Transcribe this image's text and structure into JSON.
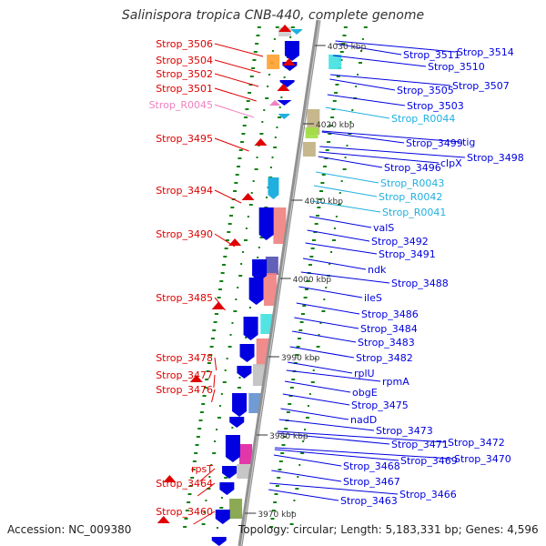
{
  "title": "Salinispora tropica CNB-440, complete genome",
  "footer": {
    "accession": "Accession: NC_009380",
    "topology": "Topology: circular; Length: 5,183,331 bp; Genes: 4,596"
  },
  "colors": {
    "left_gene": "#e00000",
    "left_rna": "#f080c0",
    "right_gene": "#0000e0",
    "right_rna": "#20b0e0",
    "backbone": "#909090",
    "tick_label": "#333333"
  },
  "kbp_ticks": [
    "3970 kbp",
    "3980 kbp",
    "3990 kbp",
    "4000 kbp",
    "4010 kbp",
    "4020 kbp",
    "4030 kbp"
  ],
  "left_labels": [
    {
      "text": "Strop_3506",
      "kind": "gene"
    },
    {
      "text": "Strop_3504",
      "kind": "gene"
    },
    {
      "text": "Strop_3502",
      "kind": "gene"
    },
    {
      "text": "Strop_3501",
      "kind": "gene"
    },
    {
      "text": "Strop_R0045",
      "kind": "rna"
    },
    {
      "text": "Strop_3495",
      "kind": "gene"
    },
    {
      "text": "Strop_3494",
      "kind": "gene"
    },
    {
      "text": "Strop_3490",
      "kind": "gene"
    },
    {
      "text": "Strop_3485",
      "kind": "gene"
    },
    {
      "text": "Strop_3478",
      "kind": "gene"
    },
    {
      "text": "Strop_3477",
      "kind": "gene"
    },
    {
      "text": "Strop_3476",
      "kind": "gene"
    },
    {
      "text": "rpsT",
      "kind": "gene"
    },
    {
      "text": "Strop_3464",
      "kind": "gene"
    },
    {
      "text": "Strop_3460",
      "kind": "gene"
    }
  ],
  "right_labels": [
    {
      "text": "Strop_3514",
      "kind": "gene"
    },
    {
      "text": "Strop_3511",
      "kind": "gene"
    },
    {
      "text": "Strop_3510",
      "kind": "gene"
    },
    {
      "text": "Strop_3507",
      "kind": "gene"
    },
    {
      "text": "Strop_3505",
      "kind": "gene"
    },
    {
      "text": "Strop_3503",
      "kind": "gene"
    },
    {
      "text": "Strop_R0044",
      "kind": "rna"
    },
    {
      "text": "tig",
      "kind": "gene"
    },
    {
      "text": "Strop_3499",
      "kind": "gene"
    },
    {
      "text": "Strop_3498",
      "kind": "gene"
    },
    {
      "text": "clpX",
      "kind": "gene"
    },
    {
      "text": "Strop_3496",
      "kind": "gene"
    },
    {
      "text": "Strop_R0043",
      "kind": "rna"
    },
    {
      "text": "Strop_R0042",
      "kind": "rna"
    },
    {
      "text": "Strop_R0041",
      "kind": "rna"
    },
    {
      "text": "valS",
      "kind": "gene"
    },
    {
      "text": "Strop_3492",
      "kind": "gene"
    },
    {
      "text": "Strop_3491",
      "kind": "gene"
    },
    {
      "text": "ndk",
      "kind": "gene"
    },
    {
      "text": "Strop_3488",
      "kind": "gene"
    },
    {
      "text": "ileS",
      "kind": "gene"
    },
    {
      "text": "Strop_3486",
      "kind": "gene"
    },
    {
      "text": "Strop_3484",
      "kind": "gene"
    },
    {
      "text": "Strop_3483",
      "kind": "gene"
    },
    {
      "text": "Strop_3482",
      "kind": "gene"
    },
    {
      "text": "rplU",
      "kind": "gene"
    },
    {
      "text": "rpmA",
      "kind": "gene"
    },
    {
      "text": "obgE",
      "kind": "gene"
    },
    {
      "text": "Strop_3475",
      "kind": "gene"
    },
    {
      "text": "nadD",
      "kind": "gene"
    },
    {
      "text": "Strop_3473",
      "kind": "gene"
    },
    {
      "text": "Strop_3472",
      "kind": "gene"
    },
    {
      "text": "Strop_3471",
      "kind": "gene"
    },
    {
      "text": "Strop_3470",
      "kind": "gene"
    },
    {
      "text": "Strop_3469",
      "kind": "gene"
    },
    {
      "text": "Strop_3468",
      "kind": "gene"
    },
    {
      "text": "Strop_3467",
      "kind": "gene"
    },
    {
      "text": "Strop_3466",
      "kind": "gene"
    },
    {
      "text": "Strop_3463",
      "kind": "gene"
    }
  ]
}
